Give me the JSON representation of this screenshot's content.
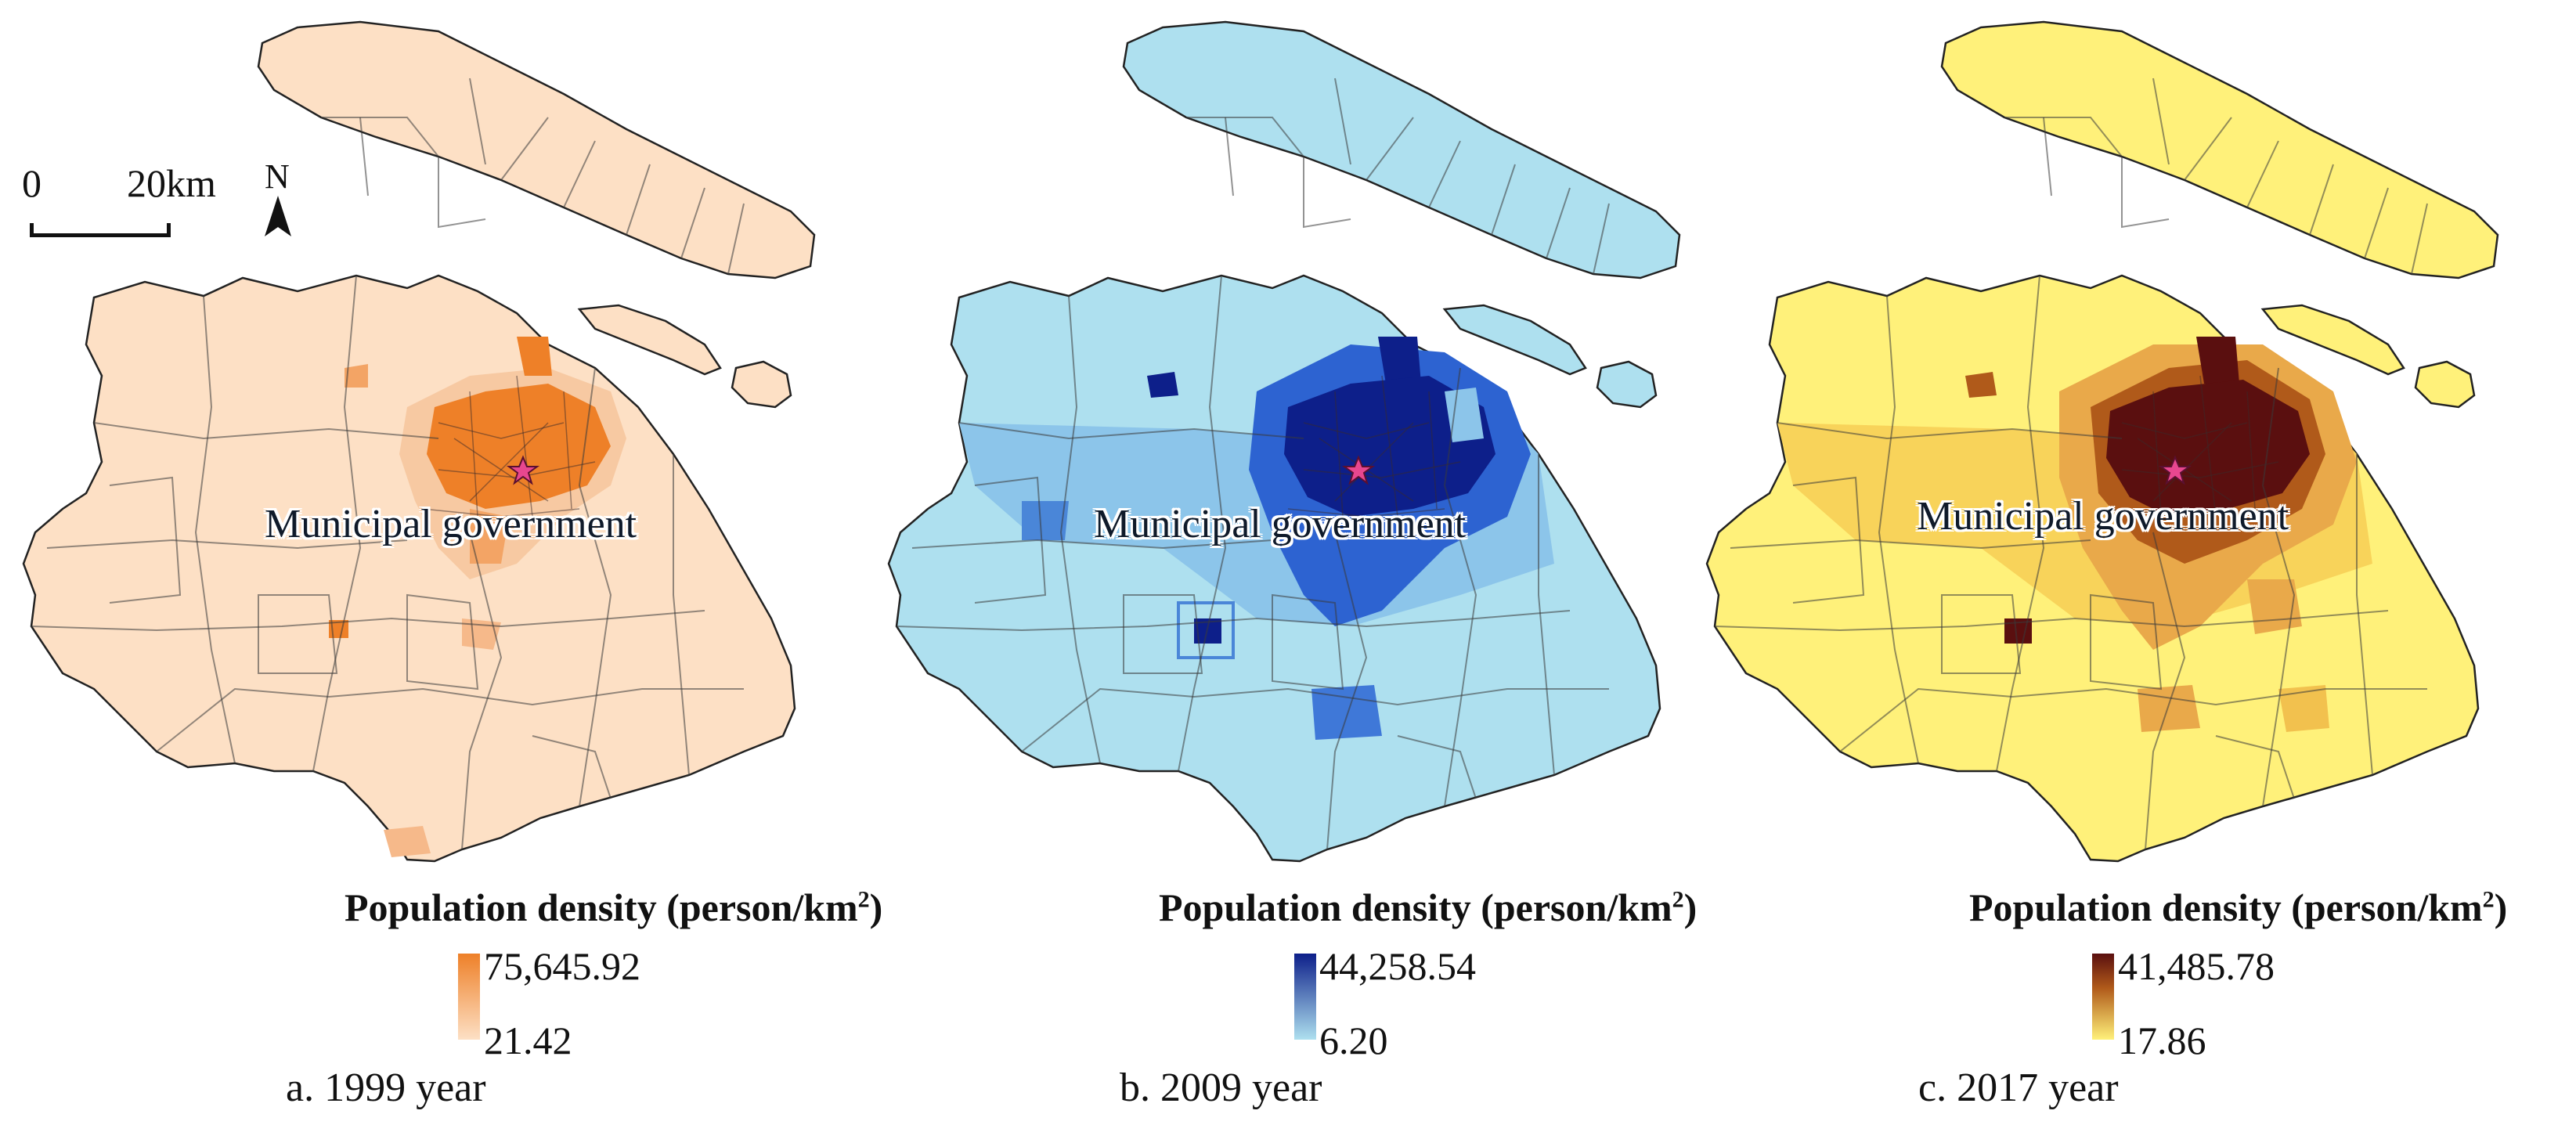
{
  "scale_bar": {
    "start": "0",
    "end": "20km"
  },
  "north_arrow": {
    "label": "N"
  },
  "landmark": {
    "label": "Municipal government",
    "icon": "star-icon",
    "color": "#e8478f"
  },
  "legend_title": "Population density (person/km",
  "legend_title_sup": "2",
  "legend_title_end": ")",
  "panels": [
    {
      "id": "a",
      "caption": "a. 1999 year",
      "max": "75,645.92",
      "min": "21.42",
      "colors": {
        "low": "#fde0c5",
        "mid": "#f6b98a",
        "high": "#ee8028",
        "peak": "#e8731c"
      }
    },
    {
      "id": "b",
      "caption": "b. 2009 year",
      "max": "44,258.54",
      "min": "6.20",
      "colors": {
        "low": "#aee0ef",
        "mid": "#6da8e0",
        "high": "#1f4fbf",
        "peak": "#0d1f8a"
      }
    },
    {
      "id": "c",
      "caption": "c. 2017 year",
      "max": "41,485.78",
      "min": "17.86",
      "colors": {
        "low": "#fff17a",
        "mid": "#f2c14e",
        "high": "#b05a1a",
        "peak": "#5a0f0f"
      }
    }
  ]
}
